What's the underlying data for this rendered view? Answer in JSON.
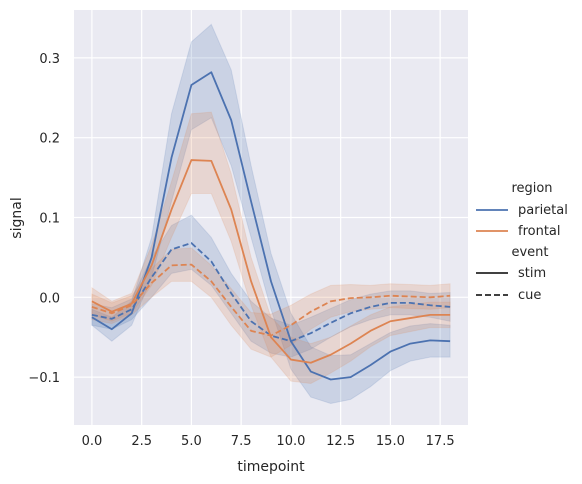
{
  "chart_data": {
    "type": "line",
    "xlabel": "timepoint",
    "ylabel": "signal",
    "xlim": [
      -0.9,
      18.9
    ],
    "ylim": [
      -0.16,
      0.36
    ],
    "xticks": [
      0.0,
      2.5,
      5.0,
      7.5,
      10.0,
      12.5,
      15.0,
      17.5
    ],
    "xtick_labels": [
      "0.0",
      "2.5",
      "5.0",
      "7.5",
      "10.0",
      "12.5",
      "15.0",
      "17.5"
    ],
    "yticks": [
      -0.1,
      0.0,
      0.1,
      0.2,
      0.3
    ],
    "ytick_labels": [
      "−0.1",
      "0.0",
      "0.1",
      "0.2",
      "0.3"
    ],
    "grid": true,
    "background": "#eaeaf2",
    "legend": {
      "placement": "right",
      "hue_title": "region",
      "style_title": "event",
      "hue_items": [
        {
          "label": "parietal",
          "color": "#4c72b0"
        },
        {
          "label": "frontal",
          "color": "#dd8452"
        }
      ],
      "style_items": [
        {
          "label": "stim",
          "dash": "solid"
        },
        {
          "label": "cue",
          "dash": "dashed"
        }
      ]
    },
    "x": [
      0,
      1,
      2,
      3,
      4,
      5,
      6,
      7,
      8,
      9,
      10,
      11,
      12,
      13,
      14,
      15,
      16,
      17,
      18
    ],
    "series": [
      {
        "region": "parietal",
        "event": "stim",
        "color": "#4c72b0",
        "dash": "solid",
        "y": [
          -0.025,
          -0.04,
          -0.02,
          0.05,
          0.175,
          0.266,
          0.282,
          0.222,
          0.12,
          0.02,
          -0.055,
          -0.093,
          -0.103,
          -0.1,
          -0.085,
          -0.068,
          -0.058,
          -0.054,
          -0.055
        ],
        "lower": [
          -0.035,
          -0.055,
          -0.035,
          0.025,
          0.12,
          0.21,
          0.225,
          0.165,
          0.075,
          -0.015,
          -0.09,
          -0.125,
          -0.133,
          -0.128,
          -0.112,
          -0.092,
          -0.08,
          -0.075,
          -0.075
        ],
        "upper": [
          -0.015,
          -0.025,
          -0.005,
          0.075,
          0.23,
          0.32,
          0.342,
          0.285,
          0.165,
          0.055,
          -0.02,
          -0.062,
          -0.073,
          -0.072,
          -0.058,
          -0.044,
          -0.036,
          -0.033,
          -0.035
        ]
      },
      {
        "region": "parietal",
        "event": "cue",
        "color": "#4c72b0",
        "dash": "dashed",
        "y": [
          -0.022,
          -0.027,
          -0.015,
          0.025,
          0.06,
          0.068,
          0.045,
          0.005,
          -0.03,
          -0.048,
          -0.055,
          -0.045,
          -0.032,
          -0.02,
          -0.012,
          -0.007,
          -0.007,
          -0.01,
          -0.012
        ],
        "lower": [
          -0.035,
          -0.04,
          -0.028,
          0.0,
          0.03,
          0.035,
          0.015,
          -0.02,
          -0.055,
          -0.07,
          -0.075,
          -0.065,
          -0.05,
          -0.037,
          -0.028,
          -0.022,
          -0.022,
          -0.025,
          -0.03
        ],
        "upper": [
          -0.008,
          -0.013,
          -0.002,
          0.05,
          0.09,
          0.103,
          0.075,
          0.03,
          -0.005,
          -0.026,
          -0.035,
          -0.025,
          -0.014,
          -0.003,
          0.004,
          0.008,
          0.008,
          0.005,
          0.006
        ]
      },
      {
        "region": "frontal",
        "event": "stim",
        "color": "#dd8452",
        "dash": "solid",
        "y": [
          -0.005,
          -0.018,
          -0.008,
          0.04,
          0.11,
          0.172,
          0.171,
          0.11,
          0.02,
          -0.05,
          -0.078,
          -0.082,
          -0.072,
          -0.058,
          -0.042,
          -0.03,
          -0.026,
          -0.022,
          -0.022
        ],
        "lower": [
          -0.022,
          -0.03,
          -0.02,
          0.015,
          0.075,
          0.13,
          0.13,
          0.07,
          -0.01,
          -0.075,
          -0.105,
          -0.108,
          -0.095,
          -0.08,
          -0.062,
          -0.048,
          -0.043,
          -0.038,
          -0.038
        ],
        "upper": [
          0.012,
          -0.005,
          0.005,
          0.065,
          0.145,
          0.23,
          0.232,
          0.155,
          0.05,
          -0.025,
          -0.05,
          -0.058,
          -0.05,
          -0.036,
          -0.022,
          -0.012,
          -0.009,
          -0.006,
          -0.006
        ]
      },
      {
        "region": "frontal",
        "event": "cue",
        "color": "#dd8452",
        "dash": "dashed",
        "y": [
          -0.012,
          -0.02,
          -0.01,
          0.018,
          0.04,
          0.041,
          0.02,
          -0.012,
          -0.042,
          -0.048,
          -0.035,
          -0.018,
          -0.005,
          -0.001,
          0.0,
          0.002,
          0.001,
          0.0,
          0.002
        ],
        "lower": [
          -0.028,
          -0.033,
          -0.022,
          0.0,
          0.02,
          0.02,
          0.0,
          -0.035,
          -0.065,
          -0.075,
          -0.06,
          -0.04,
          -0.025,
          -0.018,
          -0.015,
          -0.013,
          -0.014,
          -0.015,
          -0.013
        ],
        "upper": [
          0.004,
          -0.007,
          0.002,
          0.036,
          0.06,
          0.062,
          0.04,
          0.011,
          -0.019,
          -0.021,
          -0.01,
          0.004,
          0.015,
          0.016,
          0.015,
          0.017,
          0.016,
          0.015,
          0.017
        ]
      }
    ]
  }
}
